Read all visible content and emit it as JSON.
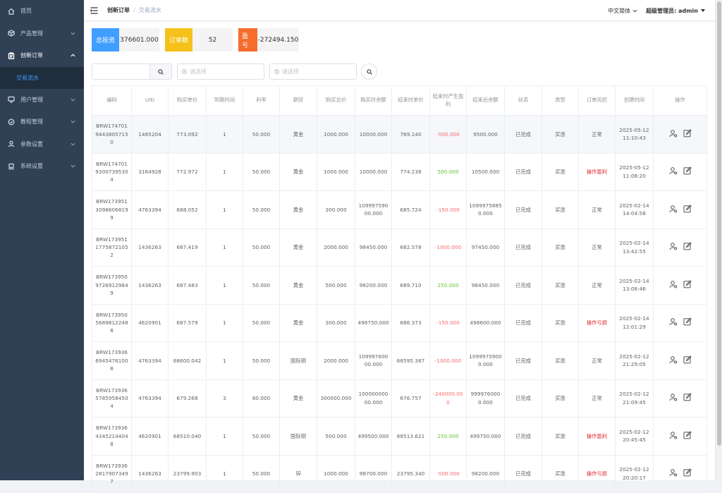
{
  "sidebar": {
    "items": [
      {
        "label": "首页",
        "icon": "home-icon"
      },
      {
        "label": "产品管理",
        "icon": "box-icon"
      },
      {
        "label": "创新订单",
        "icon": "clipboard-icon"
      },
      {
        "label": "用户管理",
        "icon": "monitor-icon"
      },
      {
        "label": "教程管理",
        "icon": "check-circle-icon"
      },
      {
        "label": "参数设置",
        "icon": "user-icon"
      },
      {
        "label": "系统设置",
        "icon": "laptop-icon"
      }
    ],
    "active_sub": "交易流水"
  },
  "header": {
    "breadcrumb_parent": "创新订单",
    "breadcrumb_current": "交易流水",
    "language": "中文简体",
    "user": "超级管理员: admin"
  },
  "stats": {
    "total_invest_label": "总投资",
    "total_invest_value": "376601.000",
    "order_count_label": "订单数",
    "order_count_value": "52",
    "profit_label": "盈亏",
    "profit_value": "-272494.150"
  },
  "filters": {
    "date_start_placeholder": "请选择",
    "date_end_placeholder": "请选择"
  },
  "table": {
    "headers": [
      "编码",
      "UID",
      "购买单价",
      "到期时间",
      "利率",
      "期货",
      "购买总价",
      "购买时余额",
      "结束时单价",
      "结束时产生盈利",
      "结束后余额",
      "状态",
      "类型",
      "订单风控",
      "创建时间",
      "操作"
    ],
    "rows": [
      {
        "code": "BRW17470194438057150",
        "uid": "1485204",
        "price": "773.092",
        "expire": "1",
        "rate": "50.000",
        "future": "黄金",
        "total": "1000.000",
        "bal_before": "10000.000",
        "end_price": "769.140",
        "profit": "-500.000",
        "bal_after": "9500.000",
        "status": "已完成",
        "type": "买涨",
        "risk": "正常",
        "created": "2025-05-12 11:10:43"
      },
      {
        "code": "BRW17470193007395304",
        "uid": "3164928",
        "price": "772.972",
        "expire": "1",
        "rate": "50.000",
        "future": "黄金",
        "total": "1000.000",
        "bal_before": "10000.000",
        "end_price": "774.238",
        "profit": "500.000",
        "bal_after": "10500.000",
        "status": "已完成",
        "type": "买涨",
        "risk": "操作盈利",
        "created": "2025-05-12 11:08:20"
      },
      {
        "code": "BRW17395130986068199",
        "uid": "4763394",
        "price": "688.052",
        "expire": "1",
        "rate": "50.000",
        "future": "黄金",
        "total": "300.000",
        "bal_before": "10999759000.000",
        "end_price": "685.724",
        "profit": "-150.000",
        "bal_after": "10999758850.000",
        "status": "已完成",
        "type": "买涨",
        "risk": "正常",
        "created": "2025-02-14 14:04:58"
      },
      {
        "code": "BRW17395117758721052",
        "uid": "1436263",
        "price": "687.419",
        "expire": "1",
        "rate": "50.000",
        "future": "黄金",
        "total": "2000.000",
        "bal_before": "98450.000",
        "end_price": "682.578",
        "profit": "-1000.000",
        "bal_after": "97450.000",
        "status": "已完成",
        "type": "买涨",
        "risk": "正常",
        "created": "2025-02-14 13:42:55"
      },
      {
        "code": "BRW17395097269129849",
        "uid": "1436263",
        "price": "687.483",
        "expire": "1",
        "rate": "50.000",
        "future": "黄金",
        "total": "500.000",
        "bal_before": "98200.000",
        "end_price": "689.710",
        "profit": "250.000",
        "bal_after": "98450.000",
        "status": "已完成",
        "type": "买涨",
        "risk": "正常",
        "created": "2025-02-14 13:08:46"
      },
      {
        "code": "BRW17395056898122488",
        "uid": "4620901",
        "price": "687.579",
        "expire": "1",
        "rate": "50.000",
        "future": "黄金",
        "total": "300.000",
        "bal_before": "498750.000",
        "end_price": "686.373",
        "profit": "-150.000",
        "bal_after": "498600.000",
        "status": "已完成",
        "type": "买涨",
        "risk": "操作亏损",
        "created": "2025-02-14 12:01:29"
      },
      {
        "code": "BRW17393669454761008",
        "uid": "4763394",
        "price": "68600.042",
        "expire": "1",
        "rate": "50.000",
        "future": "国际铜",
        "total": "2000.000",
        "bal_before": "10999760000.000",
        "end_price": "68595.387",
        "profit": "-1000.000",
        "bal_after": "10999759000.000",
        "status": "已完成",
        "type": "买涨",
        "risk": "正常",
        "created": "2025-02-12 21:29:05"
      },
      {
        "code": "BRW17393657859584504",
        "uid": "4763394",
        "price": "679.268",
        "expire": "3",
        "rate": "80.000",
        "future": "黄金",
        "total": "300000.000",
        "bal_before": "10000000000.000",
        "end_price": "676.757",
        "profit": "-240000.000",
        "bal_after": "9999760000.000",
        "status": "已完成",
        "type": "买涨",
        "risk": "正常",
        "created": "2025-02-12 21:09:45"
      },
      {
        "code": "BRW17393643452144048",
        "uid": "4620901",
        "price": "68510.040",
        "expire": "1",
        "rate": "50.000",
        "future": "国际铜",
        "total": "500.000",
        "bal_before": "499500.000",
        "end_price": "68513.621",
        "profit": "250.000",
        "bal_after": "499750.000",
        "status": "已完成",
        "type": "买涨",
        "risk": "操作盈利",
        "created": "2025-02-12 20:45:45"
      },
      {
        "code": "BRW17393628179073497",
        "uid": "1436263",
        "price": "23799.903",
        "expire": "1",
        "rate": "50.000",
        "future": "锌",
        "total": "1000.000",
        "bal_before": "98700.000",
        "end_price": "23795.340",
        "profit": "-500.000",
        "bal_after": "98200.000",
        "status": "已完成",
        "type": "买涨",
        "risk": "操作亏损",
        "created": "2025-02-12 20:20:17"
      }
    ]
  },
  "colors": {
    "sidebar_bg": "#304156",
    "primary": "#409eff",
    "warning": "#f5c21b",
    "danger_orange": "#f56c2d",
    "loss": "#f56c6c",
    "gain": "#67c23a",
    "risk_red": "#e0262b"
  }
}
